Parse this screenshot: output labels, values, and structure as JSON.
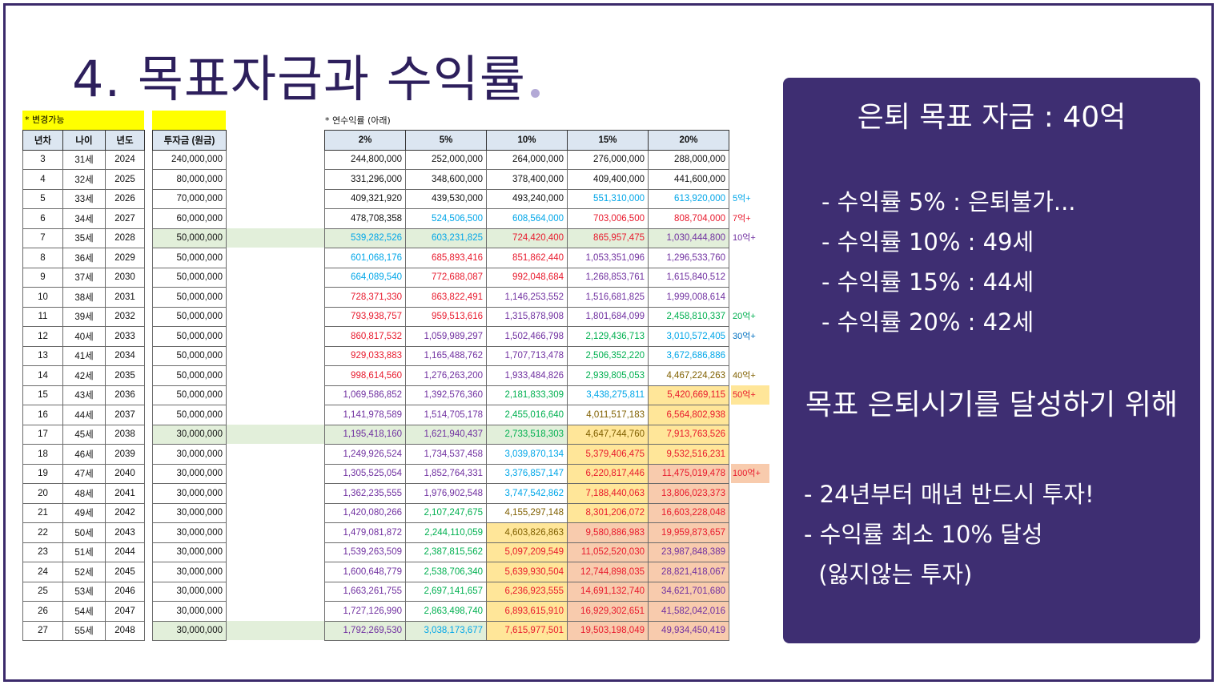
{
  "slide": {
    "title": "4. 목표자금과 수익률"
  },
  "left_table": {
    "note": "* 변경가능",
    "headers": [
      "년차",
      "나이",
      "년도",
      "투자금 (원금)"
    ],
    "rows": [
      {
        "year_n": "3",
        "age": "31세",
        "year": "2024",
        "invest": "240,000,000"
      },
      {
        "year_n": "4",
        "age": "32세",
        "year": "2025",
        "invest": "80,000,000"
      },
      {
        "year_n": "5",
        "age": "33세",
        "year": "2026",
        "invest": "70,000,000"
      },
      {
        "year_n": "6",
        "age": "34세",
        "year": "2027",
        "invest": "60,000,000"
      },
      {
        "year_n": "7",
        "age": "35세",
        "year": "2028",
        "invest": "50,000,000"
      },
      {
        "year_n": "8",
        "age": "36세",
        "year": "2029",
        "invest": "50,000,000"
      },
      {
        "year_n": "9",
        "age": "37세",
        "year": "2030",
        "invest": "50,000,000"
      },
      {
        "year_n": "10",
        "age": "38세",
        "year": "2031",
        "invest": "50,000,000"
      },
      {
        "year_n": "11",
        "age": "39세",
        "year": "2032",
        "invest": "50,000,000"
      },
      {
        "year_n": "12",
        "age": "40세",
        "year": "2033",
        "invest": "50,000,000"
      },
      {
        "year_n": "13",
        "age": "41세",
        "year": "2034",
        "invest": "50,000,000"
      },
      {
        "year_n": "14",
        "age": "42세",
        "year": "2035",
        "invest": "50,000,000"
      },
      {
        "year_n": "15",
        "age": "43세",
        "year": "2036",
        "invest": "50,000,000"
      },
      {
        "year_n": "16",
        "age": "44세",
        "year": "2037",
        "invest": "50,000,000"
      },
      {
        "year_n": "17",
        "age": "45세",
        "year": "2038",
        "invest": "30,000,000"
      },
      {
        "year_n": "18",
        "age": "46세",
        "year": "2039",
        "invest": "30,000,000"
      },
      {
        "year_n": "19",
        "age": "47세",
        "year": "2040",
        "invest": "30,000,000"
      },
      {
        "year_n": "20",
        "age": "48세",
        "year": "2041",
        "invest": "30,000,000"
      },
      {
        "year_n": "21",
        "age": "49세",
        "year": "2042",
        "invest": "30,000,000"
      },
      {
        "year_n": "22",
        "age": "50세",
        "year": "2043",
        "invest": "30,000,000"
      },
      {
        "year_n": "23",
        "age": "51세",
        "year": "2044",
        "invest": "30,000,000"
      },
      {
        "year_n": "24",
        "age": "52세",
        "year": "2045",
        "invest": "30,000,000"
      },
      {
        "year_n": "25",
        "age": "53세",
        "year": "2046",
        "invest": "30,000,000"
      },
      {
        "year_n": "26",
        "age": "54세",
        "year": "2047",
        "invest": "30,000,000"
      },
      {
        "year_n": "27",
        "age": "55세",
        "year": "2048",
        "invest": "30,000,000"
      }
    ]
  },
  "right_table": {
    "note": "* 연수익률 (아래)",
    "headers": [
      "2%",
      "5%",
      "10%",
      "15%",
      "20%"
    ],
    "rows": [
      [
        "244,800,000",
        "252,000,000",
        "264,000,000",
        "276,000,000",
        "288,000,000"
      ],
      [
        "331,296,000",
        "348,600,000",
        "378,400,000",
        "409,400,000",
        "441,600,000"
      ],
      [
        "409,321,920",
        "439,530,000",
        "493,240,000",
        "551,310,000",
        "613,920,000"
      ],
      [
        "478,708,358",
        "524,506,500",
        "608,564,000",
        "703,006,500",
        "808,704,000"
      ],
      [
        "539,282,526",
        "603,231,825",
        "724,420,400",
        "865,957,475",
        "1,030,444,800"
      ],
      [
        "601,068,176",
        "685,893,416",
        "851,862,440",
        "1,053,351,096",
        "1,296,533,760"
      ],
      [
        "664,089,540",
        "772,688,087",
        "992,048,684",
        "1,268,853,761",
        "1,615,840,512"
      ],
      [
        "728,371,330",
        "863,822,491",
        "1,146,253,552",
        "1,516,681,825",
        "1,999,008,614"
      ],
      [
        "793,938,757",
        "959,513,616",
        "1,315,878,908",
        "1,801,684,099",
        "2,458,810,337"
      ],
      [
        "860,817,532",
        "1,059,989,297",
        "1,502,466,798",
        "2,129,436,713",
        "3,010,572,405"
      ],
      [
        "929,033,883",
        "1,165,488,762",
        "1,707,713,478",
        "2,506,352,220",
        "3,672,686,886"
      ],
      [
        "998,614,560",
        "1,276,263,200",
        "1,933,484,826",
        "2,939,805,053",
        "4,467,224,263"
      ],
      [
        "1,069,586,852",
        "1,392,576,360",
        "2,181,833,309",
        "3,438,275,811",
        "5,420,669,115"
      ],
      [
        "1,141,978,589",
        "1,514,705,178",
        "2,455,016,640",
        "4,011,517,183",
        "6,564,802,938"
      ],
      [
        "1,195,418,160",
        "1,621,940,437",
        "2,733,518,303",
        "4,647,744,760",
        "7,913,763,526"
      ],
      [
        "1,249,926,524",
        "1,734,537,458",
        "3,039,870,134",
        "5,379,406,475",
        "9,532,516,231"
      ],
      [
        "1,305,525,054",
        "1,852,764,331",
        "3,376,857,147",
        "6,220,817,446",
        "11,475,019,478"
      ],
      [
        "1,362,235,555",
        "1,976,902,548",
        "3,747,542,862",
        "7,188,440,063",
        "13,806,023,373"
      ],
      [
        "1,420,080,266",
        "2,107,247,675",
        "4,155,297,148",
        "8,301,206,072",
        "16,603,228,048"
      ],
      [
        "1,479,081,872",
        "2,244,110,059",
        "4,603,826,863",
        "9,580,886,983",
        "19,959,873,657"
      ],
      [
        "1,539,263,509",
        "2,387,815,562",
        "5,097,209,549",
        "11,052,520,030",
        "23,987,848,389"
      ],
      [
        "1,600,648,779",
        "2,538,706,340",
        "5,639,930,504",
        "12,744,898,035",
        "28,821,418,067"
      ],
      [
        "1,663,261,755",
        "2,697,141,657",
        "6,236,923,555",
        "14,691,132,740",
        "34,621,701,680"
      ],
      [
        "1,727,126,990",
        "2,863,498,740",
        "6,893,615,910",
        "16,929,302,651",
        "41,582,042,016"
      ],
      [
        "1,792,269,530",
        "3,038,173,677",
        "7,615,977,501",
        "19,503,198,049",
        "49,934,450,419"
      ]
    ],
    "milestones": [
      {
        "row": 2,
        "label": "5억+",
        "color": "#00a6e8"
      },
      {
        "row": 3,
        "label": "7억+",
        "color": "#e8192c"
      },
      {
        "row": 4,
        "label": "10억+",
        "color": "#7030a0"
      },
      {
        "row": 8,
        "label": "20억+",
        "color": "#00b050"
      },
      {
        "row": 9,
        "label": "30억+",
        "color": "#0070c0"
      },
      {
        "row": 11,
        "label": "40억+",
        "color": "#806000"
      },
      {
        "row": 12,
        "label": "50억+",
        "color": "#e8192c"
      },
      {
        "row": 16,
        "label": "100억+",
        "color": "#e8192c"
      }
    ],
    "colors": {
      "blue": "#00a6e8",
      "red": "#e8192c",
      "purple": "#7030a0",
      "green": "#00b050",
      "olive": "#806000",
      "highlight_green": "#e2efda",
      "highlight_yellow": "#ffe699",
      "highlight_orange": "#f8cbad",
      "header_blue": "#dce6f1"
    }
  },
  "panel": {
    "title": "은퇴 목표 자금 : 40억",
    "rates": [
      "- 수익률 5% : 은퇴불가...",
      "- 수익률 10% : 49세",
      "- 수익률 15% : 44세",
      "- 수익률 20% : 42세"
    ],
    "goal_heading": "목표 은퇴시기를 달성하기 위해",
    "actions": [
      "- 24년부터 매년 반드시 투자!",
      "- 수익률 최소 10% 달성",
      "  (잃지않는 투자)"
    ],
    "background": "#3e2e72"
  }
}
